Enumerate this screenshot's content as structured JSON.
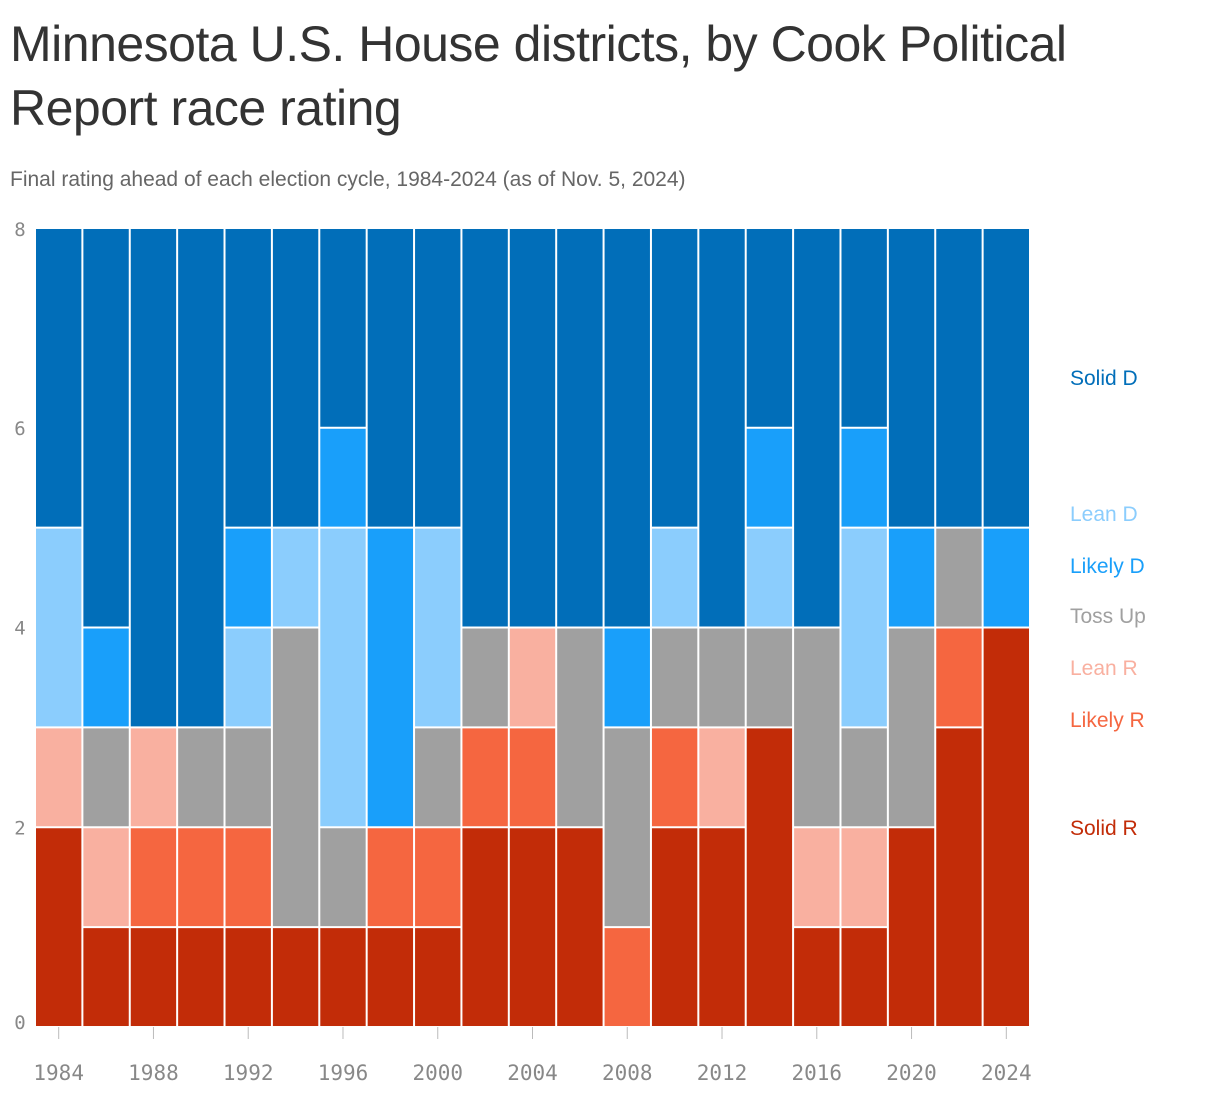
{
  "header": {
    "title": "Minnesota U.S. House districts, by Cook Political Report race rating",
    "subtitle": "Final rating ahead of each election cycle, 1984-2024 (as of Nov. 5, 2024)"
  },
  "chart_data": {
    "type": "bar",
    "stacked": true,
    "title": "Minnesota U.S. House districts, by Cook Political Report race rating",
    "subtitle": "Final rating ahead of each election cycle, 1984-2024 (as of Nov. 5, 2024)",
    "xlabel": "",
    "ylabel": "",
    "ylim": [
      0,
      8
    ],
    "y_ticks": [
      0,
      2,
      4,
      6,
      8
    ],
    "x_ticks": [
      "1984",
      "1988",
      "1992",
      "1996",
      "2000",
      "2004",
      "2008",
      "2012",
      "2016",
      "2020",
      "2024"
    ],
    "grid": false,
    "legend_position": "right",
    "categories": [
      "1984",
      "1986",
      "1988",
      "1990",
      "1992",
      "1994",
      "1996",
      "1998",
      "2000",
      "2002",
      "2004",
      "2006",
      "2008",
      "2010",
      "2012",
      "2014",
      "2016",
      "2018",
      "2020",
      "2022",
      "2024"
    ],
    "series": [
      {
        "name": "Solid R",
        "color": "#c22c08",
        "values": [
          2,
          1,
          1,
          1,
          1,
          1,
          1,
          1,
          1,
          2,
          2,
          2,
          0,
          2,
          2,
          3,
          1,
          1,
          2,
          3,
          4
        ]
      },
      {
        "name": "Likely R",
        "color": "#f56640",
        "values": [
          0,
          0,
          1,
          1,
          1,
          0,
          0,
          1,
          1,
          1,
          1,
          0,
          1,
          1,
          0,
          0,
          0,
          0,
          0,
          1,
          0
        ]
      },
      {
        "name": "Lean R",
        "color": "#f9b0a0",
        "values": [
          1,
          1,
          1,
          0,
          0,
          0,
          0,
          0,
          0,
          0,
          1,
          0,
          0,
          0,
          1,
          0,
          1,
          1,
          0,
          0,
          0
        ]
      },
      {
        "name": "Toss Up",
        "color": "#a0a0a0",
        "values": [
          0,
          1,
          0,
          1,
          1,
          3,
          1,
          0,
          1,
          1,
          0,
          2,
          2,
          1,
          1,
          1,
          2,
          1,
          2,
          1,
          0
        ]
      },
      {
        "name": "Lean D",
        "color": "#8bcdfd",
        "values": [
          2,
          0,
          0,
          0,
          1,
          1,
          3,
          0,
          2,
          0,
          0,
          0,
          0,
          1,
          0,
          1,
          0,
          2,
          0,
          0,
          0
        ]
      },
      {
        "name": "Likely D",
        "color": "#199ffa",
        "values": [
          0,
          1,
          0,
          0,
          1,
          0,
          1,
          3,
          0,
          0,
          0,
          0,
          1,
          0,
          0,
          1,
          0,
          1,
          1,
          0,
          1
        ]
      },
      {
        "name": "Solid D",
        "color": "#016eb9",
        "values": [
          3,
          4,
          5,
          5,
          3,
          3,
          2,
          3,
          3,
          4,
          4,
          4,
          4,
          3,
          4,
          2,
          4,
          2,
          3,
          3,
          3
        ]
      }
    ],
    "legend": [
      {
        "name": "Solid D",
        "color": "#016eb9"
      },
      {
        "name": "Lean D",
        "color": "#8bcdfd"
      },
      {
        "name": "Likely D",
        "color": "#199ffa"
      },
      {
        "name": "Toss Up",
        "color": "#a0a0a0"
      },
      {
        "name": "Lean R",
        "color": "#f9b0a0"
      },
      {
        "name": "Likely R",
        "color": "#f56640"
      },
      {
        "name": "Solid R",
        "color": "#c22c08"
      }
    ]
  }
}
